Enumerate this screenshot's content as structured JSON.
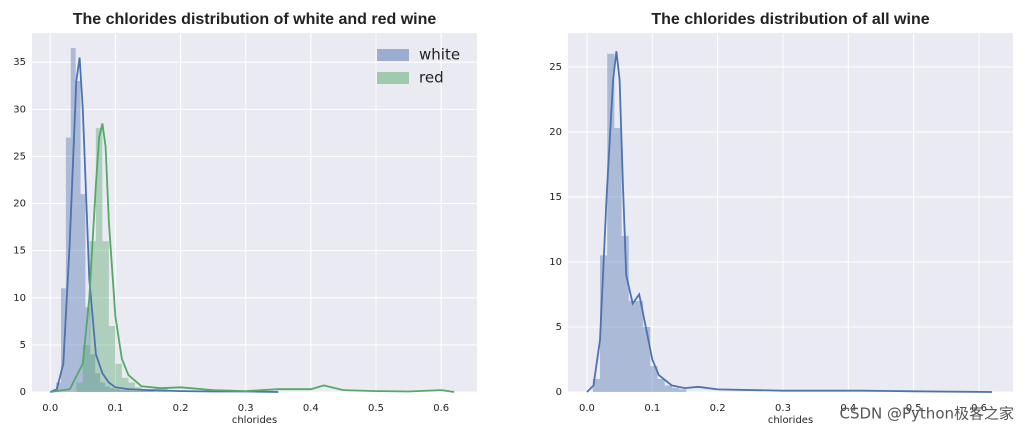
{
  "chart_data": [
    {
      "type": "histogram",
      "title": "The chlorides distribution of white and red wine",
      "xlabel": "chlorides",
      "xlim": [
        -0.028,
        0.655
      ],
      "ylim": [
        0,
        38.1
      ],
      "xticks": [
        {
          "value": 0,
          "label": "0.0"
        },
        0.1,
        0.2,
        0.3,
        0.4,
        0.5,
        0.6
      ],
      "yticks": [
        0,
        5,
        10,
        15,
        20,
        25,
        30,
        35
      ],
      "grid": true,
      "legend": "upper right",
      "series": [
        {
          "name": "white",
          "color": "#4c72b0",
          "bins": [
            0.009,
            0.0165,
            0.024,
            0.0315,
            0.039,
            0.0465,
            0.054,
            0.0615,
            0.069,
            0.0765,
            0.084,
            0.0915,
            0.099,
            0.1065,
            0.114,
            0.1215,
            0.129,
            0.1365,
            0.144,
            0.1515,
            0.159
          ],
          "values": [
            1,
            11,
            27,
            36.5,
            33,
            21,
            9,
            4,
            2,
            1,
            0.6,
            0.4,
            0.3,
            0.2,
            0.2,
            0.1,
            0.1,
            0.1,
            0.1,
            0.1
          ],
          "kde": {
            "x": [
              0,
              0.01,
              0.02,
              0.03,
              0.04,
              0.045,
              0.05,
              0.06,
              0.07,
              0.08,
              0.09,
              0.1,
              0.12,
              0.15,
              0.2,
              0.25,
              0.3,
              0.35
            ],
            "values": [
              0,
              0.3,
              3,
              16,
              33,
              35.5,
              30,
              12,
              4,
              2,
              1,
              0.5,
              0.3,
              0.2,
              0.1,
              0.05,
              0.05,
              0
            ]
          }
        },
        {
          "name": "red",
          "color": "#55a868",
          "bins": [
            0.04,
            0.05,
            0.06,
            0.07,
            0.08,
            0.09,
            0.1,
            0.11,
            0.12,
            0.13,
            0.14,
            0.15,
            0.16,
            0.17,
            0.18
          ],
          "values": [
            1,
            5,
            16,
            28,
            16,
            7,
            3,
            1.5,
            1,
            0.5,
            0.3,
            0.3,
            0.5,
            0.4
          ],
          "kde": {
            "x": [
              0,
              0.03,
              0.05,
              0.06,
              0.07,
              0.075,
              0.08,
              0.085,
              0.09,
              0.1,
              0.11,
              0.12,
              0.14,
              0.17,
              0.2,
              0.25,
              0.3,
              0.35,
              0.4,
              0.42,
              0.45,
              0.5,
              0.55,
              0.6,
              0.62
            ],
            "values": [
              0,
              0.3,
              3,
              10,
              22,
              27,
              28.5,
              26,
              18,
              8,
              3.5,
              1.8,
              0.6,
              0.4,
              0.5,
              0.2,
              0.1,
              0.3,
              0.3,
              0.7,
              0.2,
              0.1,
              0.05,
              0.2,
              0
            ]
          }
        }
      ]
    },
    {
      "type": "histogram",
      "title": "The chlorides distribution of all wine",
      "xlabel": "chlorides",
      "xlim": [
        -0.029,
        0.652
      ],
      "ylim": [
        0,
        27.6
      ],
      "xticks": [
        {
          "value": 0,
          "label": "0.0"
        },
        0.1,
        0.2,
        0.3,
        0.4,
        0.5,
        0.6
      ],
      "yticks": [
        0,
        5,
        10,
        15,
        20,
        25
      ],
      "grid": true,
      "series": [
        {
          "color": "#4c72b0",
          "bins": [
            0.009,
            0.02,
            0.031,
            0.042,
            0.053,
            0.064,
            0.075,
            0.086,
            0.097,
            0.108,
            0.119,
            0.13,
            0.141,
            0.152
          ],
          "values": [
            1,
            10.5,
            26,
            20.3,
            12,
            7,
            7,
            5,
            2,
            1,
            0.5,
            0.3,
            0.2
          ],
          "kde": {
            "x": [
              0,
              0.01,
              0.02,
              0.03,
              0.04,
              0.045,
              0.05,
              0.055,
              0.06,
              0.07,
              0.08,
              0.09,
              0.1,
              0.11,
              0.13,
              0.15,
              0.17,
              0.2,
              0.3,
              0.42,
              0.5,
              0.62
            ],
            "values": [
              0,
              0.5,
              4,
              15,
              24,
              26.2,
              24,
              16,
              9,
              6.8,
              7.5,
              5,
              2.5,
              1.3,
              0.5,
              0.3,
              0.4,
              0.2,
              0.1,
              0.1,
              0.05,
              0
            ]
          }
        }
      ]
    }
  ],
  "watermark": "CSDN @Python极客之家"
}
